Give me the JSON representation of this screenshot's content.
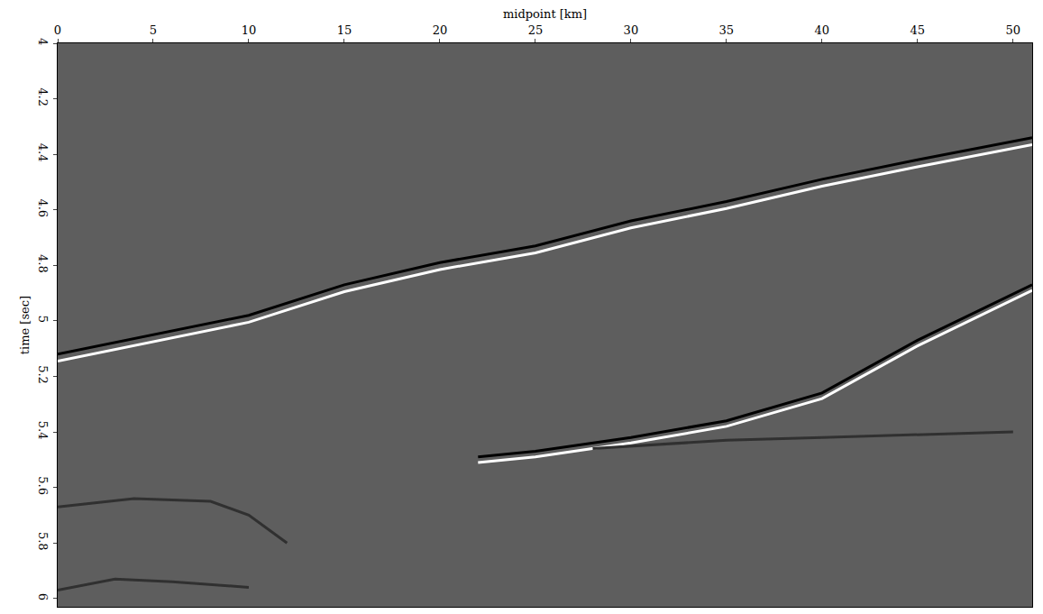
{
  "chart_data": {
    "type": "line",
    "x_label": "midpoint [km]",
    "y_label": "time [sec]",
    "xlim": [
      0,
      51
    ],
    "xticks": [
      0,
      5,
      10,
      15,
      20,
      25,
      30,
      35,
      40,
      45,
      50
    ],
    "ylim": [
      4,
      6.03
    ],
    "yticks": [
      4,
      4.2,
      4.4,
      4.6,
      4.8,
      5,
      5.2,
      5.4,
      5.6,
      5.8,
      6
    ],
    "grid": false,
    "series": [
      {
        "color": "#000000",
        "line_style": "solid",
        "x": [
          0,
          5,
          10,
          15,
          20,
          25,
          30,
          35,
          40,
          45,
          51
        ],
        "values": [
          5.12,
          5.05,
          4.98,
          4.87,
          4.79,
          4.73,
          4.64,
          4.57,
          4.49,
          4.42,
          4.34
        ]
      },
      {
        "color": "#ffffff",
        "line_style": "solid",
        "x": [
          0,
          5,
          10,
          15,
          20,
          25,
          30,
          35,
          40,
          45,
          51
        ],
        "values": [
          5.145,
          5.075,
          5.005,
          4.895,
          4.815,
          4.755,
          4.665,
          4.595,
          4.515,
          4.445,
          4.365
        ]
      },
      {
        "color": "#000000",
        "line_style": "solid",
        "x": [
          22,
          25,
          30,
          35,
          40,
          45,
          51
        ],
        "values": [
          5.49,
          5.47,
          5.42,
          5.36,
          5.26,
          5.07,
          4.87
        ]
      },
      {
        "color": "#ffffff",
        "line_style": "solid",
        "x": [
          22,
          25,
          30,
          35,
          40,
          45,
          51
        ],
        "values": [
          5.51,
          5.49,
          5.44,
          5.38,
          5.28,
          5.09,
          4.89
        ]
      },
      {
        "color": "#303030",
        "line_style": "solid",
        "x": [
          0,
          4,
          8,
          10,
          12
        ],
        "values": [
          5.67,
          5.64,
          5.65,
          5.7,
          5.8
        ]
      },
      {
        "color": "#303030",
        "line_style": "solid",
        "x": [
          28,
          35,
          40,
          45,
          50
        ],
        "values": [
          5.46,
          5.43,
          5.42,
          5.41,
          5.4
        ]
      },
      {
        "color": "#303030",
        "line_style": "solid",
        "x": [
          0,
          3,
          6,
          10
        ],
        "values": [
          5.97,
          5.93,
          5.94,
          5.96
        ]
      }
    ]
  }
}
